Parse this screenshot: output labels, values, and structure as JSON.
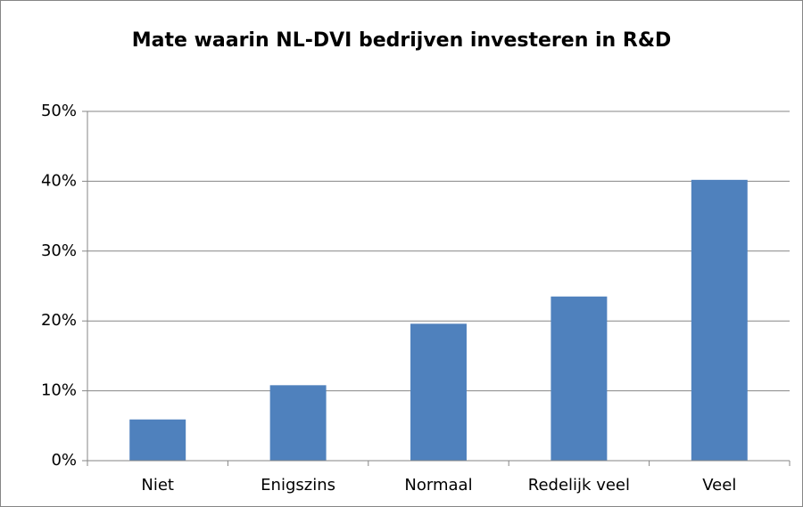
{
  "chart_data": {
    "type": "bar",
    "title": "Mate waarin NL-DVI bedrijven investeren in R&D",
    "categories": [
      "Niet",
      "Enigszins",
      "Normaal",
      "Redelijk veel",
      "Veel"
    ],
    "values": [
      5.9,
      10.8,
      19.6,
      23.5,
      40.2
    ],
    "color": "#4f81bd",
    "ylim": [
      0,
      50
    ],
    "yticks": [
      {
        "value": 0,
        "label": "0%"
      },
      {
        "value": 10,
        "label": "10%"
      },
      {
        "value": 20,
        "label": "20%"
      },
      {
        "value": 30,
        "label": "30%"
      },
      {
        "value": 40,
        "label": "40%"
      },
      {
        "value": 50,
        "label": "50%"
      }
    ],
    "grid": true
  }
}
